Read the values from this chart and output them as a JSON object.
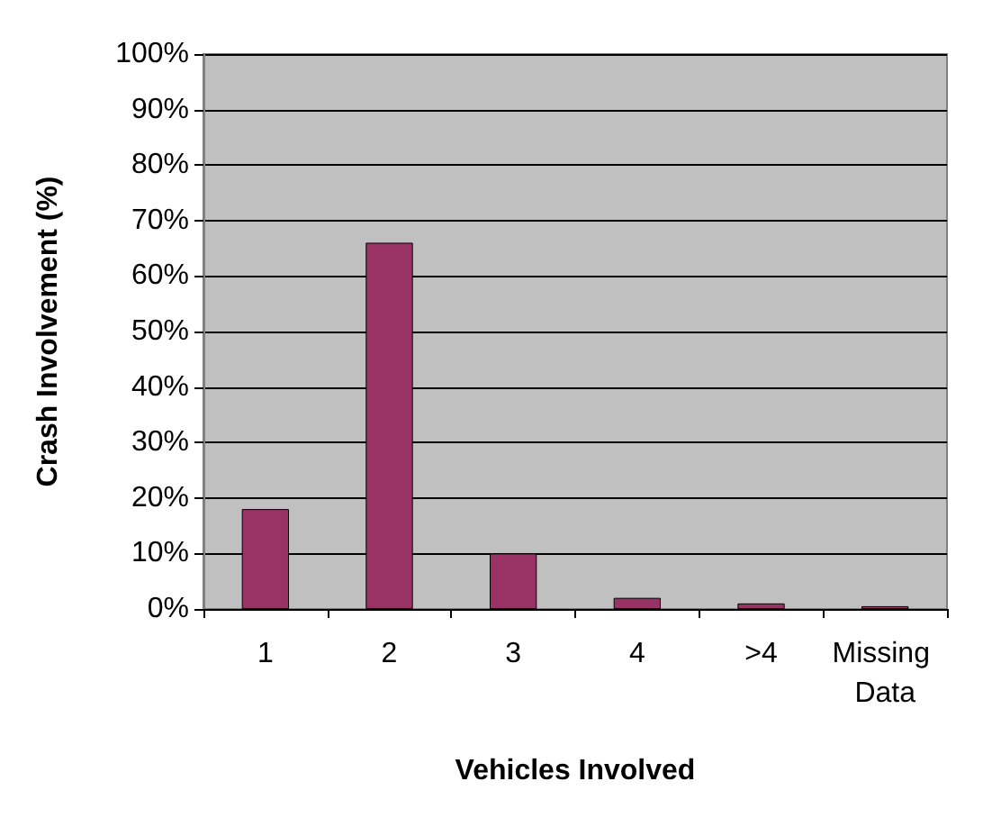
{
  "chart_data": {
    "type": "bar",
    "xlabel": "Vehicles Involved",
    "ylabel": "Crash Involvement (%)",
    "categories": [
      "1",
      "2",
      "3",
      "4",
      ">4",
      "Missing Data"
    ],
    "values": [
      18,
      66,
      10,
      2,
      1,
      0.5
    ],
    "color": "#993366",
    "ylim": [
      0,
      100
    ],
    "yticks": [
      {
        "value": 0,
        "label": "0%"
      },
      {
        "value": 10,
        "label": "10%"
      },
      {
        "value": 20,
        "label": "20%"
      },
      {
        "value": 30,
        "label": "30%"
      },
      {
        "value": 40,
        "label": "40%"
      },
      {
        "value": 50,
        "label": "50%"
      },
      {
        "value": 60,
        "label": "60%"
      },
      {
        "value": 70,
        "label": "70%"
      },
      {
        "value": 80,
        "label": "80%"
      },
      {
        "value": 90,
        "label": "90%"
      },
      {
        "value": 100,
        "label": "100%"
      }
    ],
    "grid": true
  }
}
